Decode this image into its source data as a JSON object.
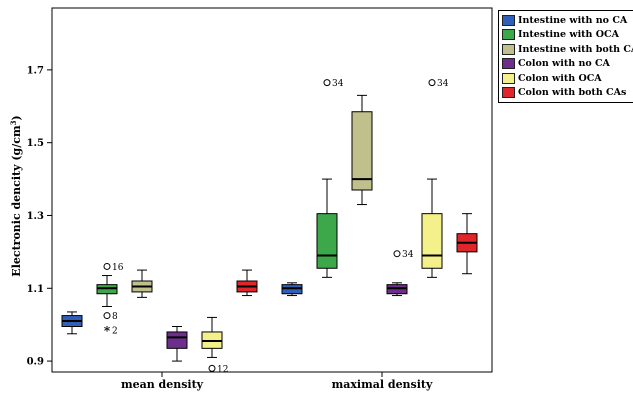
{
  "chart_data": {
    "type": "boxplot",
    "ylabel": "Electronic dencity (g/cm3)",
    "ylabel_main": "Electronic dencity (g/cm",
    "ylabel_sup": "3",
    "ylabel_close": ")",
    "ylim": [
      0.87,
      1.87
    ],
    "yticks": [
      0.9,
      1.1,
      1.3,
      1.5,
      1.7
    ],
    "ytick_labels": [
      "0.9",
      "1.1",
      "1.3",
      "1.5",
      "1.7"
    ],
    "categories": [
      "mean density",
      "maximal density"
    ],
    "legend_position": "top-right",
    "series": [
      {
        "name": "Intestine with no CA",
        "color": "#2f5fb8",
        "boxes": [
          {
            "min": 0.975,
            "q1": 0.995,
            "median": 1.01,
            "q3": 1.025,
            "max": 1.035,
            "outliers": []
          },
          {
            "min": 1.08,
            "q1": 1.085,
            "median": 1.1,
            "q3": 1.11,
            "max": 1.115,
            "outliers": []
          }
        ]
      },
      {
        "name": "Intestine with OCA",
        "color": "#3da84a",
        "boxes": [
          {
            "min": 1.05,
            "q1": 1.085,
            "median": 1.1,
            "q3": 1.11,
            "max": 1.135,
            "outliers": [
              {
                "value": 1.16,
                "label": "16",
                "marker": "circle"
              },
              {
                "value": 1.025,
                "label": "8",
                "marker": "circle"
              },
              {
                "value": 0.985,
                "label": "2",
                "marker": "star"
              }
            ]
          },
          {
            "min": 1.13,
            "q1": 1.155,
            "median": 1.19,
            "q3": 1.305,
            "max": 1.4,
            "outliers": [
              {
                "value": 1.665,
                "label": "34",
                "marker": "circle"
              }
            ]
          }
        ]
      },
      {
        "name": "Intestine with both CAs",
        "color": "#bfc08c",
        "boxes": [
          {
            "min": 1.075,
            "q1": 1.09,
            "median": 1.105,
            "q3": 1.12,
            "max": 1.15,
            "outliers": []
          },
          {
            "min": 1.33,
            "q1": 1.37,
            "median": 1.4,
            "q3": 1.585,
            "max": 1.63,
            "outliers": []
          }
        ]
      },
      {
        "name": "Colon with no CA",
        "color": "#6e2f8c",
        "boxes": [
          {
            "min": 0.9,
            "q1": 0.935,
            "median": 0.965,
            "q3": 0.98,
            "max": 0.995,
            "outliers": []
          },
          {
            "min": 1.08,
            "q1": 1.085,
            "median": 1.1,
            "q3": 1.11,
            "max": 1.115,
            "outliers": [
              {
                "value": 1.195,
                "label": "34",
                "marker": "circle"
              }
            ]
          }
        ]
      },
      {
        "name": "Colon with OCA",
        "color": "#f4f08a",
        "boxes": [
          {
            "min": 0.91,
            "q1": 0.935,
            "median": 0.955,
            "q3": 0.98,
            "max": 1.02,
            "outliers": [
              {
                "value": 0.88,
                "label": "12",
                "marker": "circle"
              }
            ]
          },
          {
            "min": 1.13,
            "q1": 1.155,
            "median": 1.19,
            "q3": 1.305,
            "max": 1.4,
            "outliers": [
              {
                "value": 1.665,
                "label": "34",
                "marker": "circle"
              }
            ]
          }
        ]
      },
      {
        "name": "Colon with both CAs",
        "color": "#e0262a",
        "boxes": [
          {
            "min": 1.08,
            "q1": 1.09,
            "median": 1.105,
            "q3": 1.12,
            "max": 1.15,
            "outliers": []
          },
          {
            "min": 1.14,
            "q1": 1.2,
            "median": 1.225,
            "q3": 1.25,
            "max": 1.305,
            "outliers": []
          }
        ]
      }
    ],
    "extra_outliers": [
      {
        "category": 1,
        "value": 1.195,
        "label": "34",
        "marker": "circle",
        "series": 1
      }
    ]
  }
}
